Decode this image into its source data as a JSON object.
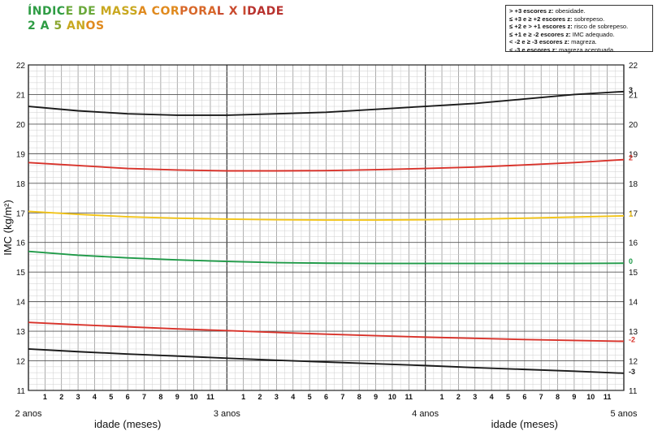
{
  "title_line1": "ÍNDICE DE MASSA CORPORAL X IDADE",
  "title_line2": "2 A 5 ANOS",
  "legend": [
    {
      "bold": "> +3 escores z:",
      "text": " obesidade."
    },
    {
      "bold": "≤ +3 e ≥ +2 escores z:",
      "text": " sobrepeso."
    },
    {
      "bold": "≤ +2 e > +1 escores z:",
      "text": " risco de sobrepeso."
    },
    {
      "bold": "≤ +1 e ≥ -2 escores z:",
      "text": " IMC adequado."
    },
    {
      "bold": "< -2 e ≥ -3 escores z:",
      "text": " magreza."
    },
    {
      "bold": "< -3 e escores z:",
      "text": " magreza acentuada."
    }
  ],
  "chart_data": {
    "type": "line",
    "ylabel": "IMC (kg/m²)",
    "xlabel": "idade (meses)",
    "xlim": [
      24,
      60
    ],
    "ylim": [
      11,
      22
    ],
    "y_ticks": [
      11,
      12,
      13,
      14,
      15,
      16,
      17,
      18,
      19,
      20,
      21,
      22
    ],
    "x_major_labels": [
      {
        "x": 24,
        "label": "2 anos"
      },
      {
        "x": 36,
        "label": "3 anos"
      },
      {
        "x": 48,
        "label": "4 anos"
      },
      {
        "x": 60,
        "label": "5 anos"
      }
    ],
    "x_minor_labels": [
      {
        "x": 25,
        "label": "1"
      },
      {
        "x": 26,
        "label": "2"
      },
      {
        "x": 27,
        "label": "3"
      },
      {
        "x": 28,
        "label": "4"
      },
      {
        "x": 29,
        "label": "5"
      },
      {
        "x": 30,
        "label": "6"
      },
      {
        "x": 31,
        "label": "7"
      },
      {
        "x": 32,
        "label": "8"
      },
      {
        "x": 33,
        "label": "9"
      },
      {
        "x": 34,
        "label": "10"
      },
      {
        "x": 35,
        "label": "11"
      },
      {
        "x": 37,
        "label": "1"
      },
      {
        "x": 38,
        "label": "2"
      },
      {
        "x": 39,
        "label": "3"
      },
      {
        "x": 40,
        "label": "4"
      },
      {
        "x": 41,
        "label": "5"
      },
      {
        "x": 42,
        "label": "6"
      },
      {
        "x": 43,
        "label": "7"
      },
      {
        "x": 44,
        "label": "8"
      },
      {
        "x": 45,
        "label": "9"
      },
      {
        "x": 46,
        "label": "10"
      },
      {
        "x": 47,
        "label": "11"
      },
      {
        "x": 49,
        "label": "1"
      },
      {
        "x": 50,
        "label": "2"
      },
      {
        "x": 51,
        "label": "3"
      },
      {
        "x": 52,
        "label": "4"
      },
      {
        "x": 53,
        "label": "5"
      },
      {
        "x": 54,
        "label": "6"
      },
      {
        "x": 55,
        "label": "7"
      },
      {
        "x": 56,
        "label": "8"
      },
      {
        "x": 57,
        "label": "9"
      },
      {
        "x": 58,
        "label": "10"
      },
      {
        "x": 59,
        "label": "11"
      }
    ],
    "x": [
      24,
      27,
      30,
      33,
      36,
      39,
      42,
      45,
      48,
      51,
      54,
      57,
      60
    ],
    "series": [
      {
        "name": "3",
        "color": "#1a1a1a",
        "values": [
          20.6,
          20.45,
          20.35,
          20.3,
          20.3,
          20.35,
          20.4,
          20.5,
          20.6,
          20.7,
          20.85,
          21.0,
          21.1
        ]
      },
      {
        "name": "2",
        "color": "#d8322a",
        "values": [
          18.7,
          18.6,
          18.5,
          18.45,
          18.42,
          18.42,
          18.43,
          18.46,
          18.5,
          18.55,
          18.62,
          18.7,
          18.8
        ]
      },
      {
        "name": "1",
        "color": "#f2c418",
        "values": [
          17.05,
          16.95,
          16.87,
          16.82,
          16.79,
          16.77,
          16.76,
          16.76,
          16.77,
          16.79,
          16.82,
          16.86,
          16.9
        ]
      },
      {
        "name": "0",
        "color": "#1f9a48",
        "values": [
          15.7,
          15.57,
          15.48,
          15.41,
          15.36,
          15.32,
          15.3,
          15.29,
          15.29,
          15.29,
          15.29,
          15.29,
          15.3
        ]
      },
      {
        "name": "-2",
        "color": "#d8322a",
        "values": [
          13.3,
          13.22,
          13.15,
          13.08,
          13.02,
          12.96,
          12.9,
          12.85,
          12.8,
          12.76,
          12.72,
          12.69,
          12.66
        ]
      },
      {
        "name": "-3",
        "color": "#1a1a1a",
        "values": [
          12.4,
          12.31,
          12.23,
          12.16,
          12.09,
          12.02,
          11.96,
          11.9,
          11.84,
          11.77,
          11.71,
          11.65,
          11.58
        ]
      }
    ]
  }
}
